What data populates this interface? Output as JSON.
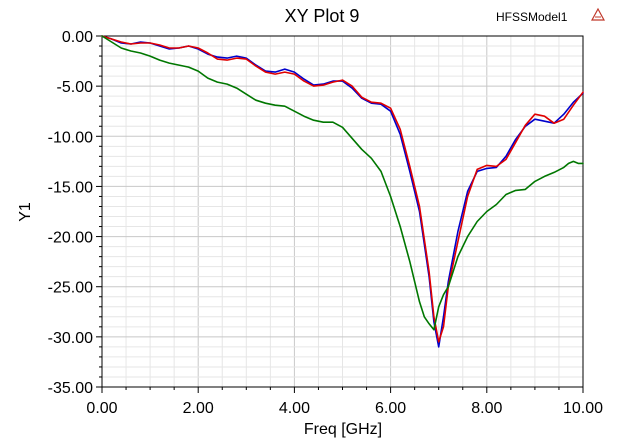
{
  "chart_data": {
    "type": "line",
    "title": "XY Plot 9",
    "model_label": "HFSSModel1",
    "logo_icon": "ansys-logo-icon",
    "xlabel": "Freq [GHz]",
    "ylabel": "Y1",
    "xlim": [
      0,
      10
    ],
    "ylim": [
      -35,
      0
    ],
    "x_ticks": [
      "0.00",
      "2.00",
      "4.00",
      "6.00",
      "8.00",
      "10.00"
    ],
    "y_ticks": [
      "0.00",
      "-5.00",
      "-10.00",
      "-15.00",
      "-20.00",
      "-25.00",
      "-30.00",
      "-35.00"
    ],
    "grid": true,
    "legend": "none",
    "series": [
      {
        "color": "#0000cc",
        "x": [
          0,
          0.2,
          0.4,
          0.6,
          0.8,
          1.0,
          1.2,
          1.4,
          1.6,
          1.8,
          2.0,
          2.2,
          2.4,
          2.6,
          2.8,
          3.0,
          3.2,
          3.4,
          3.6,
          3.8,
          4.0,
          4.2,
          4.4,
          4.6,
          4.8,
          5.0,
          5.2,
          5.4,
          5.6,
          5.8,
          6.0,
          6.2,
          6.4,
          6.6,
          6.8,
          6.9,
          7.0,
          7.1,
          7.2,
          7.4,
          7.6,
          7.8,
          8.0,
          8.2,
          8.4,
          8.6,
          8.8,
          9.0,
          9.2,
          9.4,
          9.6,
          9.8,
          10.0
        ],
        "values": [
          0,
          -0.3,
          -0.7,
          -0.8,
          -0.6,
          -0.7,
          -1.0,
          -1.3,
          -1.2,
          -1.0,
          -1.3,
          -1.8,
          -2.1,
          -2.2,
          -2.0,
          -2.2,
          -2.9,
          -3.5,
          -3.6,
          -3.3,
          -3.6,
          -4.3,
          -4.9,
          -4.8,
          -4.5,
          -4.5,
          -5.2,
          -6.2,
          -6.7,
          -6.8,
          -7.5,
          -9.8,
          -13.5,
          -17.5,
          -24.0,
          -28.5,
          -31.0,
          -28.0,
          -24.5,
          -19.5,
          -15.5,
          -13.5,
          -13.2,
          -13.1,
          -12.0,
          -10.3,
          -9.0,
          -8.3,
          -8.5,
          -8.7,
          -7.8,
          -6.6,
          -5.7
        ]
      },
      {
        "color": "#e00000",
        "x": [
          0,
          0.2,
          0.4,
          0.6,
          0.8,
          1.0,
          1.2,
          1.4,
          1.6,
          1.8,
          2.0,
          2.2,
          2.4,
          2.6,
          2.8,
          3.0,
          3.2,
          3.4,
          3.6,
          3.8,
          4.0,
          4.2,
          4.4,
          4.6,
          4.8,
          5.0,
          5.2,
          5.4,
          5.6,
          5.8,
          6.0,
          6.2,
          6.4,
          6.6,
          6.8,
          6.9,
          7.0,
          7.1,
          7.2,
          7.4,
          7.6,
          7.8,
          8.0,
          8.2,
          8.4,
          8.6,
          8.8,
          9.0,
          9.2,
          9.4,
          9.6,
          9.8,
          10.0
        ],
        "values": [
          0,
          -0.3,
          -0.6,
          -0.8,
          -0.7,
          -0.7,
          -0.9,
          -1.2,
          -1.2,
          -1.0,
          -1.2,
          -1.7,
          -2.3,
          -2.4,
          -2.2,
          -2.3,
          -3.0,
          -3.6,
          -3.8,
          -3.6,
          -3.8,
          -4.5,
          -5.0,
          -4.9,
          -4.6,
          -4.4,
          -5.0,
          -6.1,
          -6.6,
          -6.7,
          -7.2,
          -9.3,
          -13.0,
          -17.0,
          -23.5,
          -28.0,
          -30.5,
          -29.0,
          -25.0,
          -20.5,
          -16.0,
          -13.3,
          -12.9,
          -13.0,
          -12.3,
          -10.6,
          -8.9,
          -7.8,
          -8.0,
          -8.7,
          -8.3,
          -6.9,
          -5.6
        ]
      },
      {
        "color": "#007700",
        "x": [
          0,
          0.2,
          0.4,
          0.6,
          0.8,
          1.0,
          1.2,
          1.4,
          1.6,
          1.8,
          2.0,
          2.2,
          2.4,
          2.6,
          2.8,
          3.0,
          3.2,
          3.4,
          3.6,
          3.8,
          4.0,
          4.2,
          4.4,
          4.6,
          4.8,
          5.0,
          5.2,
          5.4,
          5.6,
          5.8,
          6.0,
          6.2,
          6.4,
          6.6,
          6.7,
          6.8,
          6.9,
          7.0,
          7.1,
          7.2,
          7.4,
          7.6,
          7.8,
          8.0,
          8.2,
          8.4,
          8.6,
          8.8,
          9.0,
          9.2,
          9.4,
          9.6,
          9.7,
          9.8,
          9.9,
          10.0
        ],
        "values": [
          0,
          -0.6,
          -1.2,
          -1.5,
          -1.7,
          -2.0,
          -2.4,
          -2.7,
          -2.9,
          -3.1,
          -3.5,
          -4.2,
          -4.6,
          -4.8,
          -5.2,
          -5.8,
          -6.4,
          -6.7,
          -6.9,
          -7.0,
          -7.5,
          -8.0,
          -8.4,
          -8.6,
          -8.6,
          -9.1,
          -10.2,
          -11.3,
          -12.2,
          -13.5,
          -16.0,
          -19.0,
          -22.5,
          -26.5,
          -28.0,
          -28.7,
          -29.3,
          -27.0,
          -25.8,
          -25.0,
          -22.0,
          -20.0,
          -18.5,
          -17.5,
          -16.8,
          -15.8,
          -15.4,
          -15.3,
          -14.5,
          -14.0,
          -13.6,
          -13.1,
          -12.7,
          -12.5,
          -12.7,
          -12.7
        ]
      }
    ]
  }
}
